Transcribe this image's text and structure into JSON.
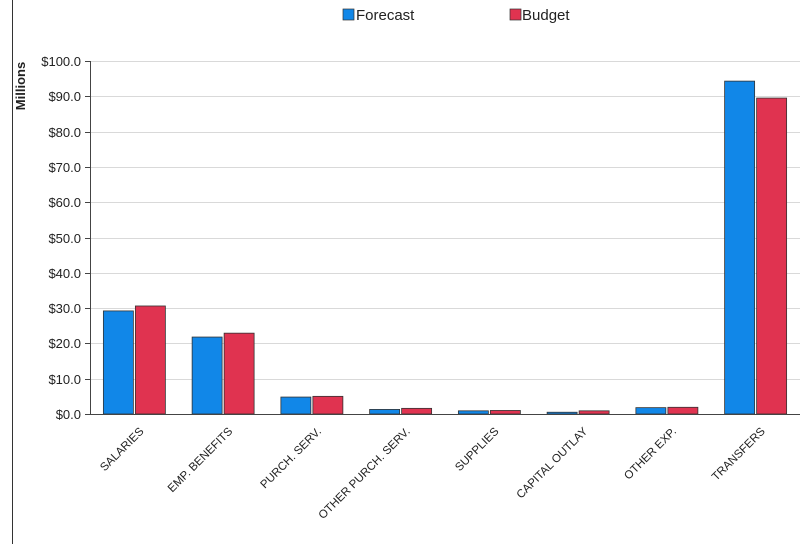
{
  "chart_data": {
    "type": "bar",
    "title": "",
    "xlabel": "",
    "ylabel": "Millions",
    "ylim": [
      0,
      100
    ],
    "ytick_labels": [
      "$0.0",
      "$10.0",
      "$20.0",
      "$30.0",
      "$40.0",
      "$50.0",
      "$60.0",
      "$70.0",
      "$80.0",
      "$90.0",
      "$100.0"
    ],
    "ytick_values": [
      0,
      10,
      20,
      30,
      40,
      50,
      60,
      70,
      80,
      90,
      100
    ],
    "categories": [
      "SALARIES",
      "EMP. BENEFITS",
      "PURCH. SERV.",
      "OTHER PURCH. SERV.",
      "SUPPLIES",
      "CAPITAL OUTLAY",
      "OTHER EXP.",
      "TRANSFERS"
    ],
    "series": [
      {
        "name": "Forecast",
        "color": "#1187e8",
        "values": [
          29.2,
          21.8,
          4.8,
          1.3,
          0.9,
          0.5,
          1.8,
          94.3
        ]
      },
      {
        "name": "Budget",
        "color": "#e03350",
        "values": [
          30.6,
          22.9,
          5.0,
          1.6,
          1.0,
          0.9,
          1.9,
          89.5
        ]
      }
    ],
    "grid": true,
    "legend_position": "top-center"
  }
}
